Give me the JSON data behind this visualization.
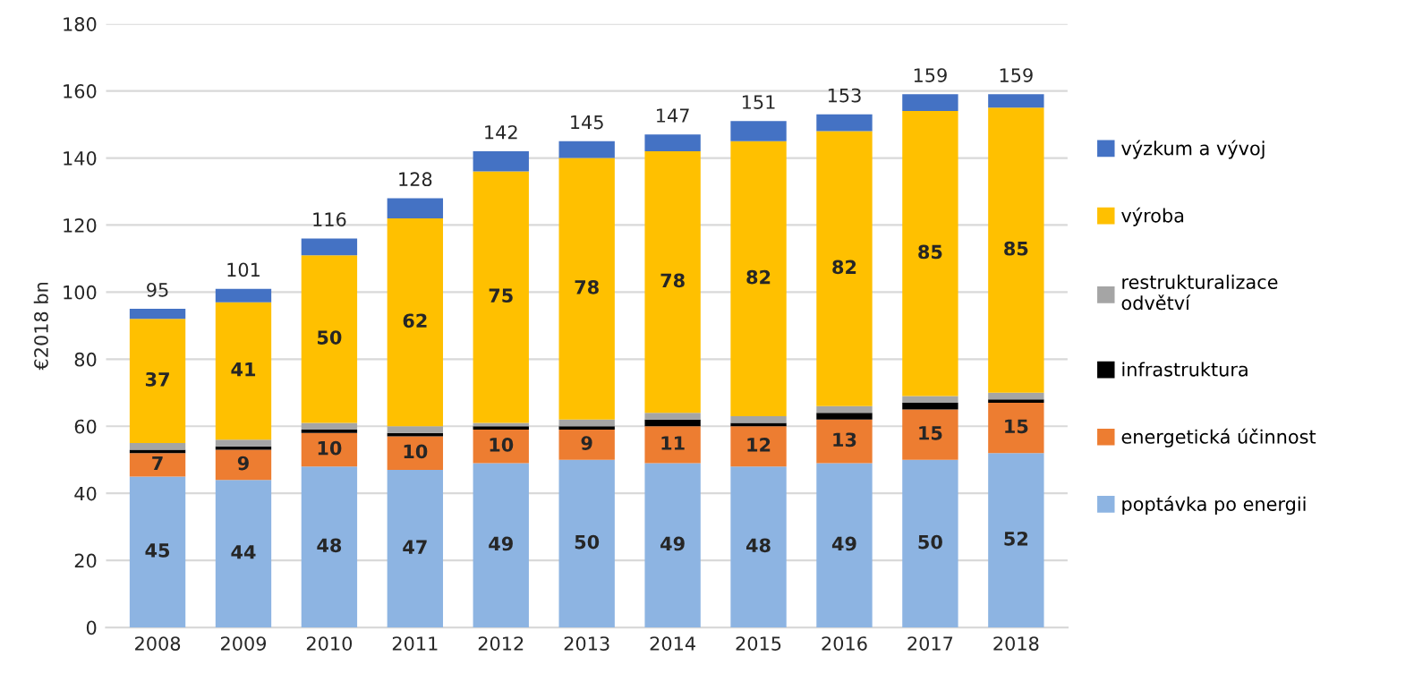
{
  "chart_data": {
    "type": "bar",
    "stacked": true,
    "ylabel": "€2018 bn",
    "categories": [
      "2008",
      "2009",
      "2010",
      "2011",
      "2012",
      "2013",
      "2014",
      "2015",
      "2016",
      "2017",
      "2018"
    ],
    "series": [
      {
        "name": "poptávka po energii",
        "color": "#8db4e2",
        "values": [
          45,
          44,
          48,
          47,
          49,
          50,
          49,
          48,
          49,
          50,
          52
        ],
        "value_labels": [
          "45",
          "44",
          "48",
          "47",
          "49",
          "50",
          "49",
          "48",
          "49",
          "50",
          "52"
        ]
      },
      {
        "name": "energetická účinnost",
        "color": "#ed7d31",
        "values": [
          7,
          9,
          10,
          10,
          10,
          9,
          11,
          12,
          13,
          15,
          15
        ],
        "value_labels": [
          "7",
          "9",
          "10",
          "10",
          "10",
          "9",
          "11",
          "12",
          "13",
          "15",
          "15"
        ]
      },
      {
        "name": "infrastruktura",
        "color": "#000000",
        "values": [
          1,
          1,
          1,
          1,
          1,
          1,
          2,
          1,
          2,
          2,
          1
        ]
      },
      {
        "name": "restrukturalizace odvětví",
        "color": "#a5a5a5",
        "values": [
          2,
          2,
          2,
          2,
          1,
          2,
          2,
          2,
          2,
          2,
          2
        ]
      },
      {
        "name": "výroba",
        "color": "#ffc000",
        "values": [
          37,
          41,
          50,
          62,
          75,
          78,
          78,
          82,
          82,
          85,
          85
        ],
        "value_labels": [
          "37",
          "41",
          "50",
          "62",
          "75",
          "78",
          "78",
          "82",
          "82",
          "85",
          "85"
        ]
      },
      {
        "name": "výzkum a vývoj",
        "color": "#4472c4",
        "values": [
          3,
          4,
          5,
          6,
          6,
          5,
          5,
          6,
          5,
          5,
          4
        ]
      }
    ],
    "totals": [
      "95",
      "101",
      "116",
      "128",
      "142",
      "145",
      "147",
      "151",
      "153",
      "159",
      "159"
    ],
    "ylim": [
      0,
      180
    ],
    "yticks": [
      0,
      20,
      40,
      60,
      80,
      100,
      120,
      140,
      160,
      180
    ],
    "grid": "y",
    "legend": "right"
  }
}
